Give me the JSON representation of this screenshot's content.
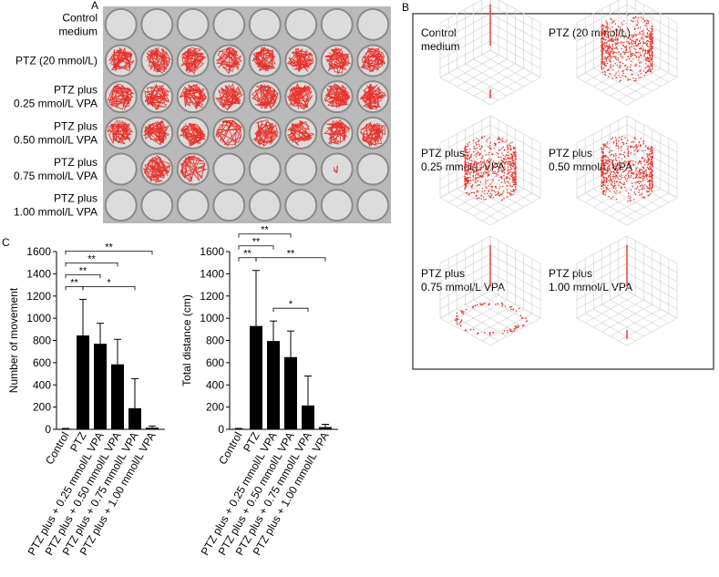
{
  "panel_a": {
    "label": "A",
    "row_labels": [
      [
        "Control",
        "medium"
      ],
      [
        "PTZ (20 mmol/L)"
      ],
      [
        "PTZ plus",
        "0.25 mmol/L VPA"
      ],
      [
        "PTZ plus",
        "0.50 mmol/L VPA"
      ],
      [
        "PTZ plus",
        "0.75 mmol/L VPA"
      ],
      [
        "PTZ plus",
        "1.00 mmol/L VPA"
      ]
    ]
  },
  "panel_b": {
    "label": "B",
    "plots": [
      {
        "title": [
          "Control",
          "medium"
        ]
      },
      {
        "title": [
          "PTZ (20 mmol/L)"
        ]
      },
      {
        "title": [
          "PTZ plus",
          "0.25 mmol/L VPA"
        ]
      },
      {
        "title": [
          "PTZ plus",
          "0.50 mmol/L VPA"
        ]
      },
      {
        "title": [
          "PTZ plus",
          "0.75 mmol/L VPA"
        ]
      },
      {
        "title": [
          "PTZ plus",
          "1.00 mmol/L VPA"
        ]
      }
    ]
  },
  "chart_data": [
    {
      "type": "bar",
      "panel_label": "C",
      "y_label": "Number of movement",
      "categories": [
        "Control",
        "PTZ",
        "PTZ plus + 0.25 mmol/L VPA",
        "PTZ plus + 0.50 mmol/L VPA",
        "PTZ plus + 0.75 mmol/L VPA",
        "PTZ plus + 1.00 mmol/L VPA"
      ],
      "values": [
        5,
        845,
        770,
        585,
        190,
        15
      ],
      "errors": [
        3,
        325,
        185,
        225,
        265,
        15
      ],
      "color": "#000000",
      "ylim": [
        0,
        1600
      ],
      "yticks": [
        0,
        200,
        400,
        600,
        800,
        1000,
        1200,
        1400,
        1600
      ],
      "comparisons": [
        {
          "from": 0,
          "to": 1,
          "label": "**"
        },
        {
          "from": 1,
          "to": 4,
          "label": "*"
        },
        {
          "from": 0,
          "to": 2,
          "label": "**"
        },
        {
          "from": 0,
          "to": 3,
          "label": "**"
        },
        {
          "from": 0,
          "to": 5,
          "label": "**"
        }
      ]
    },
    {
      "type": "bar",
      "y_label": "Total distance (cm)",
      "categories": [
        "Control",
        "PTZ",
        "PTZ plus + 0.25 mmol/L VPA",
        "PTZ plus + 0.50 mmol/L VPA",
        "PTZ plus + 0.75 mmol/L VPA",
        "PTZ plus + 1.00 mmol/L VPA"
      ],
      "values": [
        5,
        930,
        795,
        650,
        215,
        20
      ],
      "errors": [
        3,
        500,
        180,
        235,
        265,
        25
      ],
      "color": "#000000",
      "ylim": [
        0,
        1600
      ],
      "yticks": [
        0,
        200,
        400,
        600,
        800,
        1000,
        1200,
        1400,
        1600
      ],
      "comparisons": [
        {
          "from": 0,
          "to": 1,
          "label": "**"
        },
        {
          "from": 2,
          "to": 4,
          "label": "*"
        },
        {
          "from": 1,
          "to": 5,
          "label": "**"
        },
        {
          "from": 0,
          "to": 2,
          "label": "**"
        },
        {
          "from": 0,
          "to": 3,
          "label": "**"
        }
      ]
    }
  ]
}
